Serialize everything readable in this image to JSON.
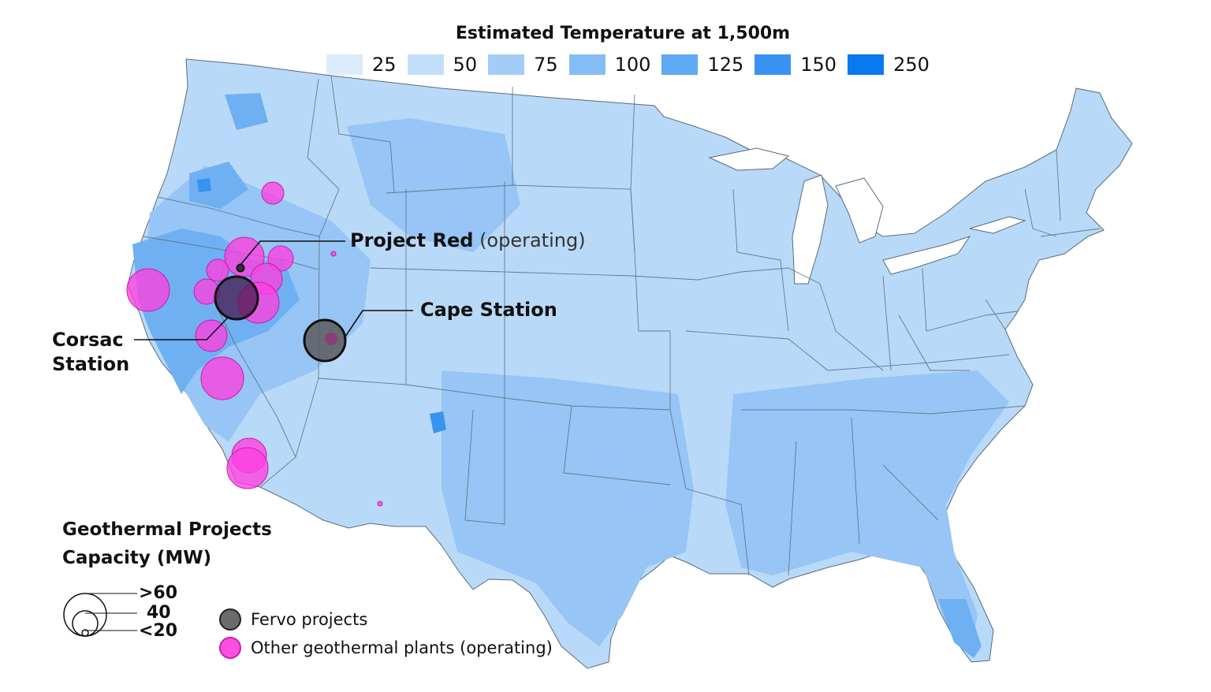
{
  "legend": {
    "title": "Estimated Temperature at 1,500m",
    "bins": [
      {
        "label": "25",
        "color": "#dcecfd"
      },
      {
        "label": "50",
        "color": "#c3def9"
      },
      {
        "label": "75",
        "color": "#a3cdf7"
      },
      {
        "label": "100",
        "color": "#84bdf5"
      },
      {
        "label": "125",
        "color": "#60aaf3"
      },
      {
        "label": "150",
        "color": "#3893f0"
      },
      {
        "label": "250",
        "color": "#0a79ef"
      }
    ]
  },
  "annotations": {
    "project_red": {
      "name": "Project Red",
      "status": "(operating)"
    },
    "cape_station": "Cape Station",
    "corsac_line1": "Corsac",
    "corsac_line2": "Station"
  },
  "capacity_legend": {
    "title_line1": "Geothermal Projects",
    "title_line2": "Capacity (MW)",
    "sizes": [
      ">60",
      "40",
      "<20"
    ]
  },
  "category_legend": {
    "fervo": {
      "label": "Fervo projects",
      "color": "#6b6b6b"
    },
    "other": {
      "label": "Other geothermal plants (operating)",
      "color": "#ff4fe0"
    }
  },
  "colors": {
    "land_base": "#b9d9f8",
    "land_warm": "#97c5f5",
    "land_hot": "#6fb0f2",
    "state_border": "#5a6a7a",
    "fervo_fill": "#4a3a5a",
    "other_fill": "#ff3fe0"
  }
}
